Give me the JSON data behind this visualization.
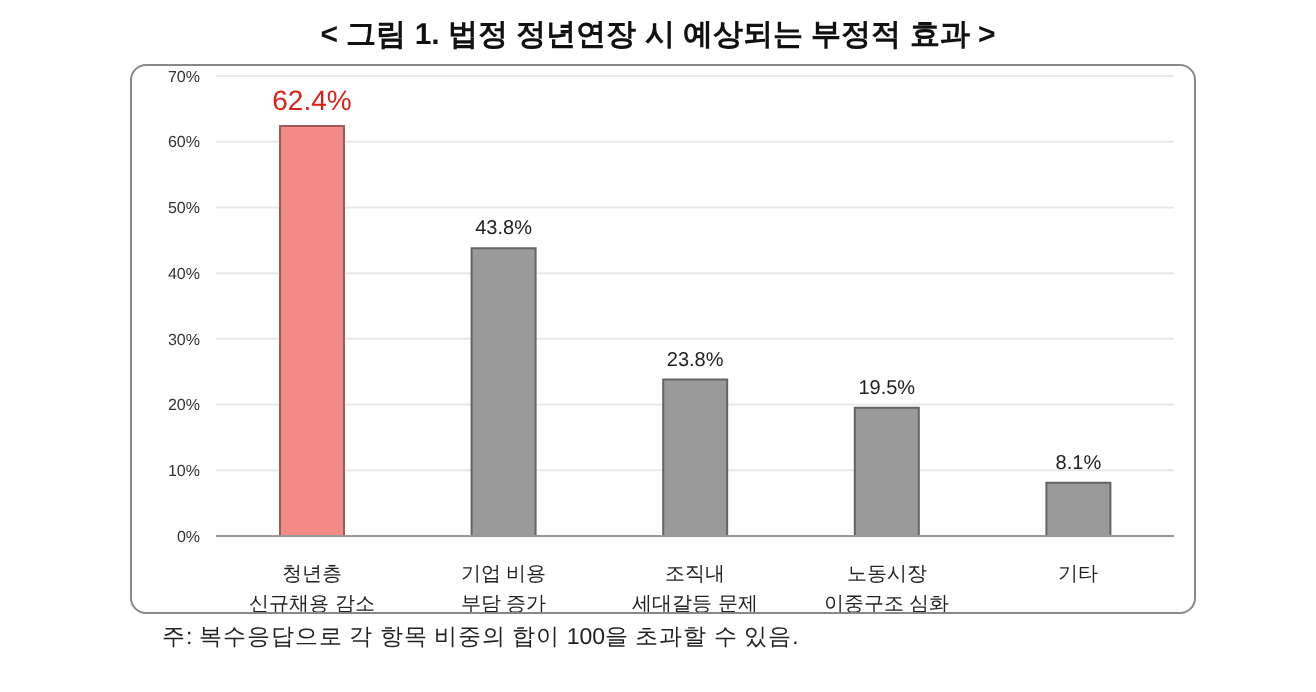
{
  "chart_data": {
    "type": "bar",
    "title": "< 그림 1. 법정 정년연장 시 예상되는 부정적 효과 >",
    "categories": [
      "청년층\n신규채용 감소",
      "기업 비용\n부담 증가",
      "조직내\n세대갈등 문제",
      "노동시장\n이중구조 심화",
      "기타"
    ],
    "values": [
      62.4,
      43.8,
      23.8,
      19.5,
      8.1
    ],
    "colors": [
      "#f28b86",
      "#9a9a9a",
      "#9a9a9a",
      "#9a9a9a",
      "#9a9a9a"
    ],
    "value_labels": [
      "62.4%",
      "43.8%",
      "23.8%",
      "19.5%",
      "8.1%"
    ],
    "ylim": [
      0,
      70
    ],
    "yticks": [
      {
        "value": 0,
        "label": "0%"
      },
      {
        "value": 10,
        "label": "10%"
      },
      {
        "value": 20,
        "label": "20%"
      },
      {
        "value": 30,
        "label": "30%"
      },
      {
        "value": 40,
        "label": "40%"
      },
      {
        "value": 50,
        "label": "50%"
      },
      {
        "value": 60,
        "label": "60%"
      },
      {
        "value": 70,
        "label": "70%"
      }
    ],
    "grid": "y",
    "legend": false,
    "annotations": [
      "주: 복수응답으로 각 항목 비중의 합이 100을 초과할 수 있음."
    ]
  }
}
